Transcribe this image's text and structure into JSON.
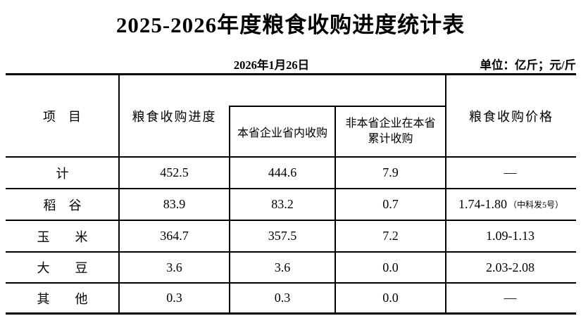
{
  "title": "2025-2026年度粮食收购进度统计表",
  "date": "2026年1月26日",
  "unit_label": "单位：亿斤；元/斤",
  "colors": {
    "text": "#000000",
    "background": "#ffffff",
    "line": "#000000"
  },
  "table": {
    "header": {
      "item": "项　目",
      "progress": "粮食收购进度",
      "local_purchase": "本省企业省内收购",
      "nonlocal_line1": "非本省企业在本省",
      "nonlocal_line2": "累计收购",
      "price": "粮食收购价格"
    },
    "rows": [
      {
        "label": "计",
        "progress": "452.5",
        "local": "444.6",
        "nonlocal": "7.9",
        "price": "—"
      },
      {
        "label": "稻　谷",
        "progress": "83.9",
        "local": "83.2",
        "nonlocal": "0.7",
        "price": "1.74-1.80",
        "price_note": "（中科发5号）"
      },
      {
        "label": "玉　　米",
        "progress": "364.7",
        "local": "357.5",
        "nonlocal": "7.2",
        "price": "1.09-1.13"
      },
      {
        "label": "大　　豆",
        "progress": "3.6",
        "local": "3.6",
        "nonlocal": "0.0",
        "price": "2.03-2.08"
      },
      {
        "label": "其　　他",
        "progress": "0.3",
        "local": "0.3",
        "nonlocal": "0.0",
        "price": "—"
      }
    ]
  }
}
